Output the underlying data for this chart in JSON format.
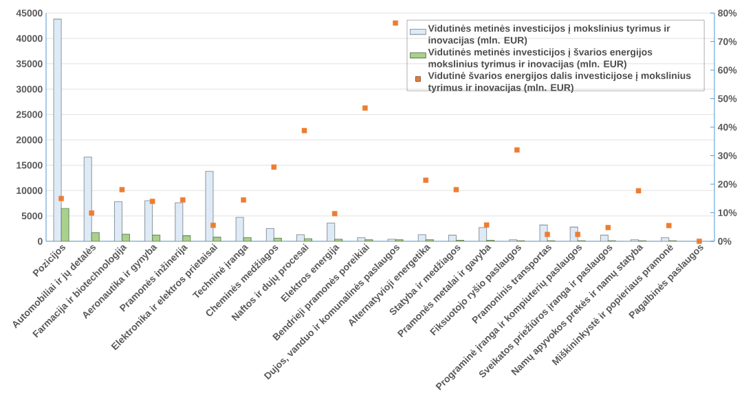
{
  "chart_data": {
    "type": "bar",
    "categories": [
      "Pozicijos",
      "Automobiliai ir jų detalės",
      "Farmacija ir biotechnologija",
      "Aeronautika ir gynyba",
      "Pramonės inžinerija",
      "Elektronika ir elektros prietaisai",
      "Techninė įranga",
      "Cheminės medžiagos",
      "Naftos ir dujų procesai",
      "Elektros energija",
      "Bendrieji pramonės poreikiai",
      "Dujos, vanduo ir komunalinės paslaugos",
      "Alternatyvioji energetika",
      "Statyba ir medžiagos",
      "Pramonės metalai ir gavyba",
      "Fiksuotojo ryšio paslaugos",
      "Pramoninis transportas",
      "Programinė įranga ir kompiuterių paslaugos",
      "Sveikatos priežiūros įranga ir paslaugos",
      "Namų apyvokos prekės ir namų statyba",
      "Miškininkystė ir popieriaus pramonė",
      "Pagalbinės paslaugos"
    ],
    "series": [
      {
        "name": "Vidutinės metinės investicijos į mokslinius tyrimus ir inovacijas (mln. EUR)",
        "color": "#deebf7",
        "values": [
          43800,
          16600,
          7800,
          8000,
          7600,
          13800,
          4700,
          2500,
          1300,
          3600,
          700,
          400,
          1300,
          1200,
          2700,
          300,
          3200,
          2800,
          1200,
          300,
          700,
          null
        ]
      },
      {
        "name": "Vidutinės metinės investicijos į švarios energijos mokslinius tyrimus ir inovacijas (mln. EUR)",
        "color": "#a9d18e",
        "values": [
          6500,
          1700,
          1400,
          1200,
          1100,
          800,
          700,
          600,
          500,
          400,
          300,
          300,
          300,
          200,
          200,
          100,
          100,
          100,
          100,
          100,
          100,
          null
        ]
      },
      {
        "name": "Vidutinė švarios energijos dalis investicijose į mokslinius tyrimus ir inovacijas (mln. EUR)",
        "type": "scatter",
        "marker": "square",
        "axis": "y2",
        "color": "#ed7d31",
        "values": [
          15.0,
          9.9,
          18.1,
          14.0,
          14.5,
          5.6,
          14.5,
          26.0,
          38.8,
          9.7,
          46.7,
          76.5,
          21.4,
          18.1,
          5.7,
          32.0,
          2.4,
          2.4,
          4.8,
          17.7,
          5.5,
          0
        ]
      }
    ],
    "ylim": [
      0,
      45000
    ],
    "yticks": [
      0,
      5000,
      10000,
      15000,
      20000,
      25000,
      30000,
      35000,
      40000,
      45000
    ],
    "y2lim": [
      0,
      80
    ],
    "y2ticks": [
      {
        "value": 0,
        "label": "0%"
      },
      {
        "value": 10,
        "label": "10%"
      },
      {
        "value": 20,
        "label": "20%"
      },
      {
        "value": 30,
        "label": "30%"
      },
      {
        "value": 40,
        "label": "40%"
      },
      {
        "value": 50,
        "label": "50%"
      },
      {
        "value": 60,
        "label": "60%"
      },
      {
        "value": 70,
        "label": "70%"
      },
      {
        "value": 80,
        "label": "80%"
      }
    ],
    "grid": "y",
    "legend": "top right"
  }
}
